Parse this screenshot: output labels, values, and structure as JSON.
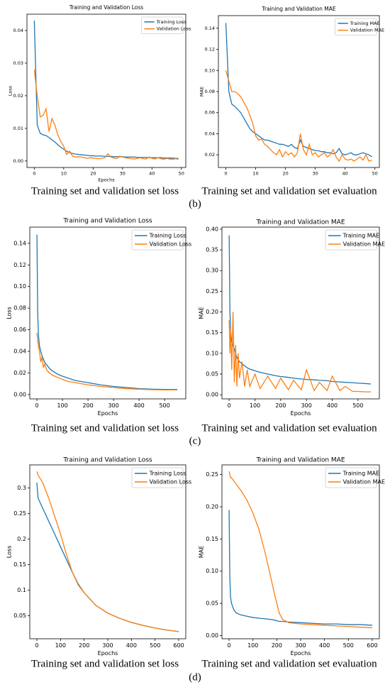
{
  "chart_data": [
    {
      "type": "line",
      "title": "Training and Validation Loss",
      "xlabel": "Epochs",
      "ylabel": "Loss",
      "caption": "Training set and validation set loss",
      "x": [
        0,
        1,
        2,
        3,
        4,
        5,
        6,
        7,
        8,
        9,
        10,
        11,
        12,
        13,
        14,
        15,
        16,
        17,
        18,
        19,
        20,
        21,
        22,
        23,
        24,
        25,
        26,
        27,
        28,
        29,
        30,
        31,
        32,
        33,
        34,
        35,
        36,
        37,
        38,
        39,
        40,
        41,
        42,
        43,
        44,
        45,
        46,
        47,
        48,
        49
      ],
      "xlim": [
        -2.5,
        51.5
      ],
      "xticks": [
        0,
        10,
        20,
        30,
        40,
        50
      ],
      "ylim": [
        -0.002,
        0.045
      ],
      "yticks": [
        {
          "value": 0,
          "label": "0.00"
        },
        {
          "value": 0.01,
          "label": "0.01"
        },
        {
          "value": 0.02,
          "label": "0.02"
        },
        {
          "value": 0.03,
          "label": "0.03"
        },
        {
          "value": 0.04,
          "label": "0.04"
        }
      ],
      "legend": "upper right",
      "series": [
        {
          "name": "Training Loss",
          "color": "#1f77b4",
          "values": [
            0.043,
            0.011,
            0.0085,
            0.008,
            0.0078,
            0.0072,
            0.0065,
            0.0058,
            0.005,
            0.0042,
            0.0036,
            0.003,
            0.0026,
            0.0023,
            0.0021,
            0.002,
            0.0019,
            0.0018,
            0.0017,
            0.0016,
            0.0016,
            0.0015,
            0.0015,
            0.0015,
            0.0014,
            0.0014,
            0.0014,
            0.0013,
            0.0013,
            0.0013,
            0.0013,
            0.0012,
            0.0012,
            0.0012,
            0.0012,
            0.0011,
            0.0011,
            0.0011,
            0.0011,
            0.001,
            0.001,
            0.001,
            0.001,
            0.001,
            0.0009,
            0.0009,
            0.0009,
            0.0009,
            0.0008,
            0.0008
          ]
        },
        {
          "name": "Validation Loss",
          "color": "#ff7f0e",
          "values": [
            0.028,
            0.02,
            0.0135,
            0.014,
            0.016,
            0.009,
            0.013,
            0.011,
            0.008,
            0.006,
            0.0045,
            0.002,
            0.003,
            0.0015,
            0.0012,
            0.0013,
            0.0012,
            0.001,
            0.0008,
            0.001,
            0.0009,
            0.0008,
            0.0007,
            0.0008,
            0.001,
            0.0022,
            0.0012,
            0.0009,
            0.0007,
            0.0015,
            0.0012,
            0.001,
            0.0008,
            0.0007,
            0.0006,
            0.0008,
            0.001,
            0.0007,
            0.0006,
            0.0012,
            0.0008,
            0.0006,
            0.001,
            0.0007,
            0.0005,
            0.0008,
            0.0006,
            0.0005,
            0.0007,
            0.0005
          ]
        }
      ]
    },
    {
      "type": "line",
      "title": "Training and Validation MAE",
      "ylabel": "MAE",
      "caption": "Training set and validation set evaluation",
      "x": [
        0,
        1,
        2,
        3,
        4,
        5,
        6,
        7,
        8,
        9,
        10,
        11,
        12,
        13,
        14,
        15,
        16,
        17,
        18,
        19,
        20,
        21,
        22,
        23,
        24,
        25,
        26,
        27,
        28,
        29,
        30,
        31,
        32,
        33,
        34,
        35,
        36,
        37,
        38,
        39,
        40,
        41,
        42,
        43,
        44,
        45,
        46,
        47,
        48,
        49
      ],
      "xlim": [
        -2.5,
        51.5
      ],
      "xticks": [
        0,
        10,
        20,
        30,
        40,
        50
      ],
      "ylim": [
        0.008,
        0.152
      ],
      "yticks": [
        {
          "value": 0.02,
          "label": "0.02"
        },
        {
          "value": 0.04,
          "label": "0.04"
        },
        {
          "value": 0.06,
          "label": "0.06"
        },
        {
          "value": 0.08,
          "label": "0.08"
        },
        {
          "value": 0.1,
          "label": "0.10"
        },
        {
          "value": 0.12,
          "label": "0.12"
        },
        {
          "value": 0.14,
          "label": "0.14"
        }
      ],
      "legend": "upper right",
      "series": [
        {
          "name": "Training MAE",
          "color": "#1f77b4",
          "values": [
            0.145,
            0.08,
            0.068,
            0.066,
            0.063,
            0.06,
            0.055,
            0.05,
            0.045,
            0.042,
            0.04,
            0.038,
            0.036,
            0.034,
            0.034,
            0.033,
            0.032,
            0.031,
            0.03,
            0.03,
            0.029,
            0.028,
            0.03,
            0.027,
            0.026,
            0.034,
            0.028,
            0.027,
            0.026,
            0.025,
            0.024,
            0.024,
            0.023,
            0.023,
            0.022,
            0.022,
            0.021,
            0.022,
            0.026,
            0.021,
            0.02,
            0.021,
            0.022,
            0.02,
            0.02,
            0.021,
            0.022,
            0.021,
            0.02,
            0.018
          ]
        },
        {
          "name": "Validation MAE",
          "color": "#ff7f0e",
          "values": [
            0.1,
            0.09,
            0.08,
            0.08,
            0.078,
            0.075,
            0.07,
            0.065,
            0.058,
            0.05,
            0.038,
            0.034,
            0.035,
            0.03,
            0.028,
            0.025,
            0.022,
            0.02,
            0.025,
            0.018,
            0.023,
            0.02,
            0.022,
            0.018,
            0.022,
            0.04,
            0.025,
            0.02,
            0.03,
            0.02,
            0.022,
            0.018,
            0.02,
            0.022,
            0.018,
            0.02,
            0.025,
            0.018,
            0.014,
            0.02,
            0.016,
            0.015,
            0.016,
            0.014,
            0.016,
            0.018,
            0.015,
            0.02,
            0.014,
            0.015
          ]
        }
      ]
    },
    {
      "type": "line",
      "title": "Training and Validation Loss",
      "xlabel": "Epochs",
      "ylabel": "Loss",
      "caption": "Training set and validation set loss",
      "x": [
        0,
        3,
        6,
        10,
        15,
        20,
        25,
        30,
        40,
        50,
        60,
        80,
        100,
        125,
        150,
        200,
        250,
        300,
        350,
        400,
        450,
        500,
        550
      ],
      "xlim": [
        -28,
        583
      ],
      "xticks": [
        0,
        100,
        200,
        300,
        400,
        500
      ],
      "ylim": [
        -0.004,
        0.155
      ],
      "yticks": [
        {
          "value": 0,
          "label": "0.00"
        },
        {
          "value": 0.02,
          "label": "0.02"
        },
        {
          "value": 0.04,
          "label": "0.04"
        },
        {
          "value": 0.06,
          "label": "0.06"
        },
        {
          "value": 0.08,
          "label": "0.08"
        },
        {
          "value": 0.1,
          "label": "0.10"
        },
        {
          "value": 0.12,
          "label": "0.12"
        },
        {
          "value": 0.14,
          "label": "0.14"
        }
      ],
      "legend": "upper right",
      "series": [
        {
          "name": "Training Loss",
          "color": "#1f77b4",
          "values": [
            0.148,
            0.075,
            0.055,
            0.045,
            0.04,
            0.036,
            0.033,
            0.03,
            0.027,
            0.024,
            0.022,
            0.019,
            0.017,
            0.015,
            0.013,
            0.011,
            0.009,
            0.0075,
            0.0065,
            0.0055,
            0.005,
            0.0048,
            0.0047
          ]
        },
        {
          "name": "Validation Loss",
          "color": "#ff7f0e",
          "values": [
            0.057,
            0.05,
            0.045,
            0.04,
            0.03,
            0.035,
            0.025,
            0.028,
            0.022,
            0.02,
            0.018,
            0.016,
            0.014,
            0.012,
            0.011,
            0.009,
            0.0075,
            0.0065,
            0.0055,
            0.005,
            0.0045,
            0.0043,
            0.0043
          ]
        }
      ]
    },
    {
      "type": "line",
      "title": "Training and Validation MAE",
      "xlabel": "Epochs",
      "ylabel": "MAE",
      "caption": "Training set and validation set evaluation",
      "x": [
        0,
        3,
        6,
        10,
        15,
        20,
        25,
        30,
        35,
        40,
        50,
        60,
        70,
        80,
        100,
        120,
        150,
        180,
        200,
        230,
        250,
        280,
        300,
        330,
        350,
        380,
        400,
        430,
        450,
        480,
        500,
        530,
        550
      ],
      "xlim": [
        -28,
        583
      ],
      "xticks": [
        0,
        100,
        200,
        300,
        400,
        500
      ],
      "ylim": [
        -0.01,
        0.405
      ],
      "yticks": [
        {
          "value": 0,
          "label": "0.00"
        },
        {
          "value": 0.05,
          "label": "0.05"
        },
        {
          "value": 0.1,
          "label": "0.10"
        },
        {
          "value": 0.15,
          "label": "0.15"
        },
        {
          "value": 0.2,
          "label": "0.20"
        },
        {
          "value": 0.25,
          "label": "0.25"
        },
        {
          "value": 0.3,
          "label": "0.30"
        },
        {
          "value": 0.35,
          "label": "0.35"
        },
        {
          "value": 0.4,
          "label": "0.40"
        }
      ],
      "legend": "upper right",
      "series": [
        {
          "name": "Training MAE",
          "color": "#1f77b4",
          "values": [
            0.385,
            0.2,
            0.15,
            0.13,
            0.12,
            0.11,
            0.1,
            0.09,
            0.085,
            0.08,
            0.075,
            0.07,
            0.065,
            0.062,
            0.058,
            0.054,
            0.05,
            0.046,
            0.044,
            0.042,
            0.04,
            0.038,
            0.037,
            0.036,
            0.035,
            0.034,
            0.032,
            0.031,
            0.03,
            0.029,
            0.028,
            0.027,
            0.026
          ]
        },
        {
          "name": "Validation MAE",
          "color": "#ff7f0e",
          "values": [
            0.18,
            0.1,
            0.16,
            0.06,
            0.2,
            0.03,
            0.12,
            0.02,
            0.1,
            0.04,
            0.08,
            0.02,
            0.06,
            0.02,
            0.05,
            0.015,
            0.045,
            0.015,
            0.04,
            0.012,
            0.035,
            0.012,
            0.06,
            0.01,
            0.03,
            0.01,
            0.045,
            0.01,
            0.02,
            0.008,
            0.008,
            0.007,
            0.007
          ]
        }
      ]
    },
    {
      "type": "line",
      "title": "Training and Validation Loss",
      "xlabel": "Epochs",
      "ylabel": "Loss",
      "caption": "Training set and validation set loss",
      "x": [
        0,
        5,
        25,
        50,
        75,
        100,
        125,
        150,
        175,
        200,
        250,
        300,
        350,
        400,
        450,
        500,
        550,
        600
      ],
      "xlim": [
        -30,
        630
      ],
      "xticks": [
        0,
        100,
        200,
        300,
        400,
        500,
        600
      ],
      "ylim": [
        0.005,
        0.345
      ],
      "yticks": [
        0.05,
        0.1,
        0.15,
        0.2,
        0.25,
        0.3
      ],
      "legend": "upper right",
      "series": [
        {
          "name": "Training Loss",
          "color": "#1f77b4",
          "values": [
            0.31,
            0.28,
            0.26,
            0.235,
            0.21,
            0.185,
            0.16,
            0.135,
            0.112,
            0.095,
            0.07,
            0.055,
            0.045,
            0.037,
            0.031,
            0.026,
            0.022,
            0.019
          ]
        },
        {
          "name": "Validation Loss",
          "color": "#ff7f0e",
          "values": [
            0.332,
            0.325,
            0.31,
            0.28,
            0.245,
            0.21,
            0.17,
            0.135,
            0.11,
            0.095,
            0.07,
            0.055,
            0.045,
            0.037,
            0.031,
            0.026,
            0.022,
            0.019
          ]
        }
      ]
    },
    {
      "type": "line",
      "title": "Training and Validation MAE",
      "xlabel": "Epochs",
      "ylabel": "MAE",
      "caption": "Training set and validation set evaluation",
      "x": [
        0,
        3,
        6,
        10,
        20,
        30,
        50,
        75,
        100,
        125,
        150,
        175,
        190,
        200,
        210,
        225,
        250,
        300,
        350,
        400,
        450,
        500,
        550,
        600
      ],
      "xlim": [
        -30,
        630
      ],
      "xticks": [
        0,
        100,
        200,
        300,
        400,
        500,
        600
      ],
      "ylim": [
        -0.005,
        0.265
      ],
      "yticks": [
        {
          "value": 0,
          "label": "0.00"
        },
        {
          "value": 0.05,
          "label": "0.05"
        },
        {
          "value": 0.1,
          "label": "0.10"
        },
        {
          "value": 0.15,
          "label": "0.15"
        },
        {
          "value": 0.2,
          "label": "0.20"
        },
        {
          "value": 0.25,
          "label": "0.25"
        }
      ],
      "legend": "upper right",
      "series": [
        {
          "name": "Training MAE",
          "color": "#1f77b4",
          "values": [
            0.195,
            0.09,
            0.06,
            0.05,
            0.04,
            0.035,
            0.032,
            0.03,
            0.028,
            0.027,
            0.026,
            0.025,
            0.024,
            0.023,
            0.022,
            0.022,
            0.021,
            0.02,
            0.019,
            0.018,
            0.018,
            0.017,
            0.017,
            0.016
          ]
        },
        {
          "name": "Validation MAE",
          "color": "#ff7f0e",
          "values": [
            0.255,
            0.25,
            0.245,
            0.245,
            0.24,
            0.235,
            0.225,
            0.21,
            0.19,
            0.165,
            0.13,
            0.09,
            0.065,
            0.05,
            0.035,
            0.025,
            0.02,
            0.018,
            0.017,
            0.016,
            0.015,
            0.014,
            0.013,
            0.012
          ]
        }
      ]
    }
  ],
  "panel_labels": [
    "(b)",
    "(c)",
    "(d)"
  ]
}
